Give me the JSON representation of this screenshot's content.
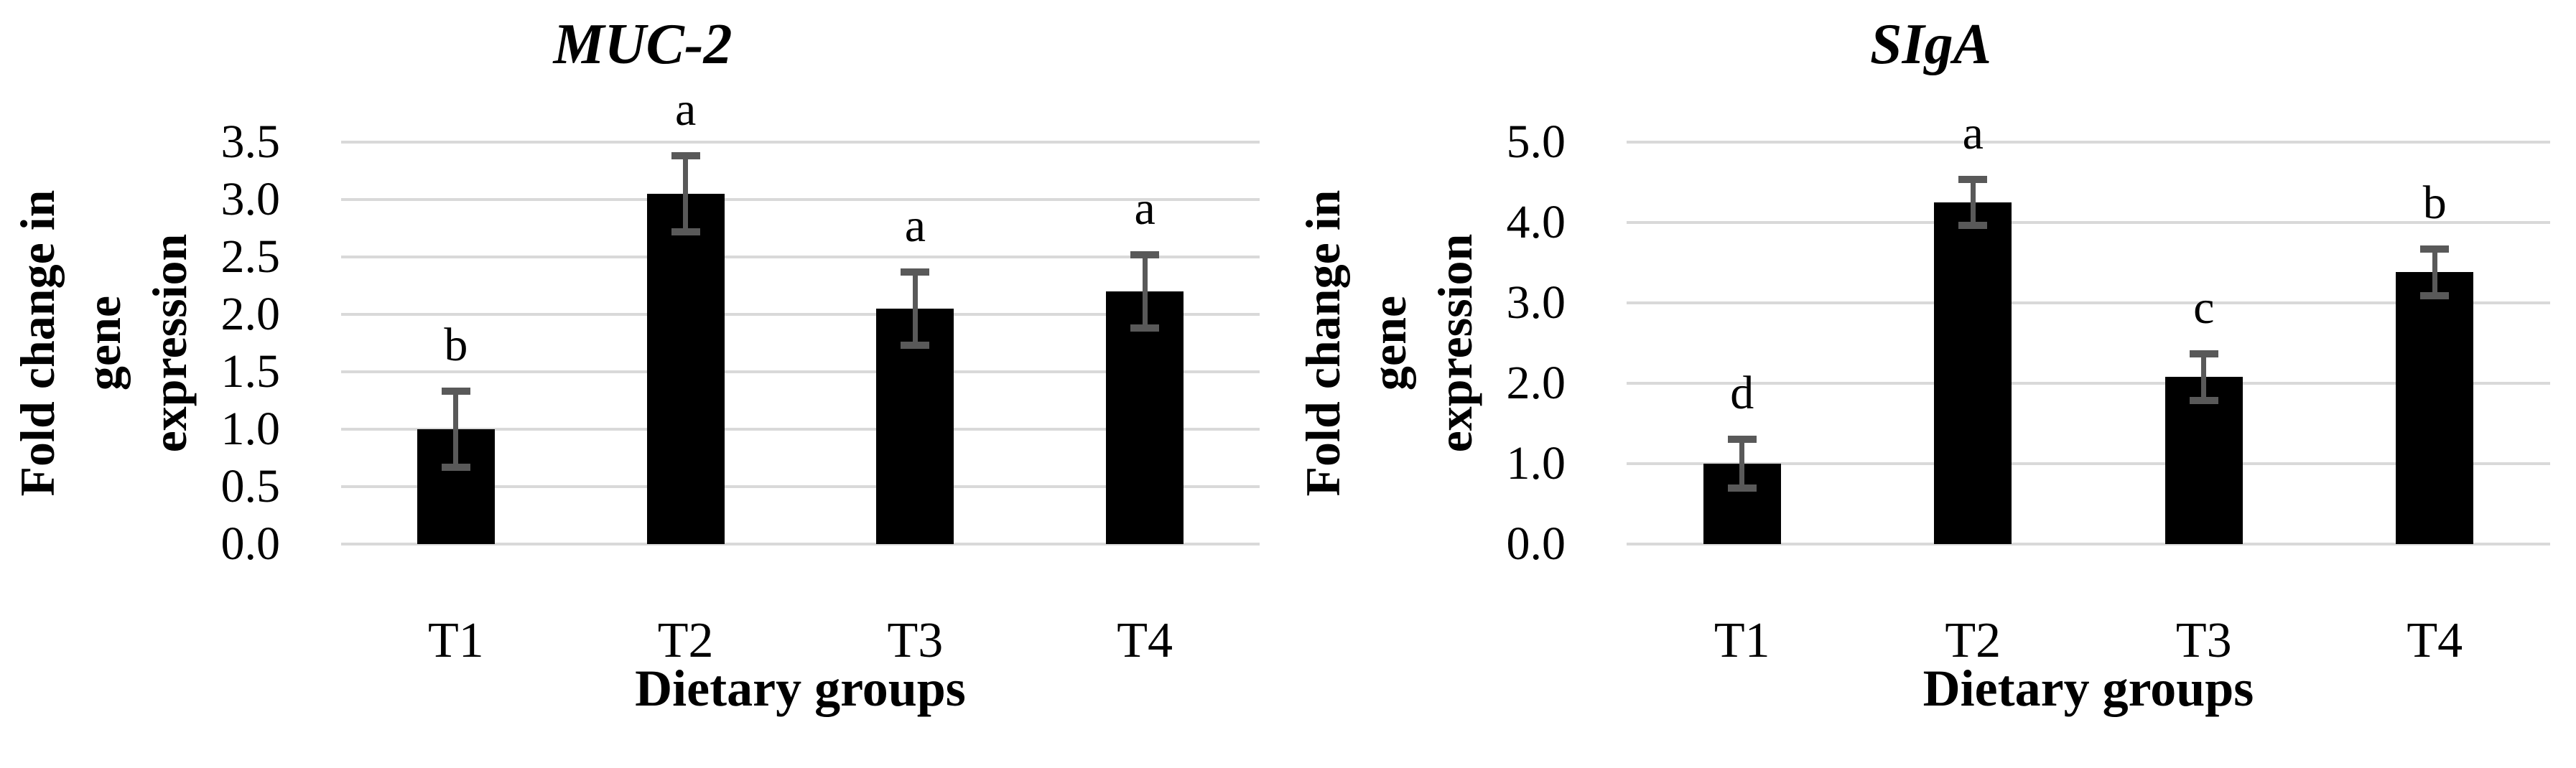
{
  "figure": {
    "background_color": "#ffffff",
    "text_color": "#000000"
  },
  "chart_data": [
    {
      "type": "bar",
      "title": "MUC-2",
      "xlabel": "Dietary groups",
      "ylabel": "Fold change in gene expression",
      "ylabel_lines": [
        "Fold change in gene",
        "expression"
      ],
      "categories": [
        "T1",
        "T2",
        "T3",
        "T4"
      ],
      "values": [
        1.0,
        3.05,
        2.05,
        2.2
      ],
      "errors": [
        0.33,
        0.33,
        0.32,
        0.32
      ],
      "sig_letters": [
        "b",
        "a",
        "a",
        "a"
      ],
      "ylim": [
        0,
        3.5
      ],
      "ytick_step": 0.5,
      "yticks": [
        "0.0",
        "0.5",
        "1.0",
        "1.5",
        "2.0",
        "2.5",
        "3.0",
        "3.5"
      ],
      "grid": true,
      "legend": false,
      "bar_color": "#000000",
      "error_color": "#595959",
      "gridline_color": "#D9D9D9"
    },
    {
      "type": "bar",
      "title": "SIgA",
      "xlabel": "Dietary groups",
      "ylabel": "Fold change in gene expression",
      "ylabel_lines": [
        "Fold change in gene",
        "expression"
      ],
      "categories": [
        "T1",
        "T2",
        "T3",
        "T4"
      ],
      "values": [
        1.0,
        4.25,
        2.08,
        3.38
      ],
      "errors": [
        0.3,
        0.29,
        0.29,
        0.29
      ],
      "sig_letters": [
        "d",
        "a",
        "c",
        "b"
      ],
      "ylim": [
        0,
        5.0
      ],
      "ytick_step": 1.0,
      "yticks": [
        "0.0",
        "1.0",
        "2.0",
        "3.0",
        "4.0",
        "5.0"
      ],
      "grid": true,
      "legend": false,
      "bar_color": "#000000",
      "error_color": "#595959",
      "gridline_color": "#D9D9D9"
    }
  ]
}
